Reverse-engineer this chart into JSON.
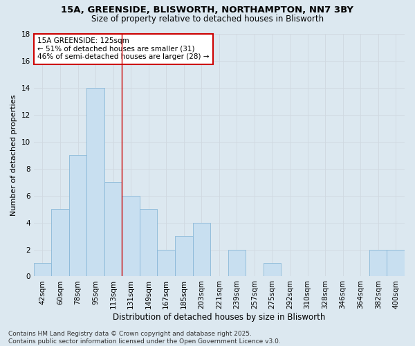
{
  "title1": "15A, GREENSIDE, BLISWORTH, NORTHAMPTON, NN7 3BY",
  "title2": "Size of property relative to detached houses in Blisworth",
  "xlabel": "Distribution of detached houses by size in Blisworth",
  "ylabel": "Number of detached properties",
  "categories": [
    "42sqm",
    "60sqm",
    "78sqm",
    "95sqm",
    "113sqm",
    "131sqm",
    "149sqm",
    "167sqm",
    "185sqm",
    "203sqm",
    "221sqm",
    "239sqm",
    "257sqm",
    "275sqm",
    "292sqm",
    "310sqm",
    "328sqm",
    "346sqm",
    "364sqm",
    "382sqm",
    "400sqm"
  ],
  "values": [
    1,
    5,
    9,
    14,
    7,
    6,
    5,
    2,
    3,
    4,
    0,
    2,
    0,
    1,
    0,
    0,
    0,
    0,
    0,
    2,
    2
  ],
  "bar_color": "#c8dff0",
  "bar_edge_color": "#8ab8d8",
  "annotation_line1": "15A GREENSIDE: 125sqm",
  "annotation_line2": "← 51% of detached houses are smaller (31)",
  "annotation_line3": "46% of semi-detached houses are larger (28) →",
  "annotation_box_color": "#ffffff",
  "annotation_box_edge_color": "#cc0000",
  "vline_x": 4.5,
  "vline_color": "#cc0000",
  "ylim": [
    0,
    18
  ],
  "yticks": [
    0,
    2,
    4,
    6,
    8,
    10,
    12,
    14,
    16,
    18
  ],
  "grid_color": "#d0d8e0",
  "bg_color": "#dce8f0",
  "footer_text": "Contains HM Land Registry data © Crown copyright and database right 2025.\nContains public sector information licensed under the Open Government Licence v3.0.",
  "title_fontsize": 9.5,
  "subtitle_fontsize": 8.5,
  "ylabel_fontsize": 8,
  "xlabel_fontsize": 8.5,
  "tick_fontsize": 7.5,
  "annotation_fontsize": 7.5,
  "footer_fontsize": 6.5
}
